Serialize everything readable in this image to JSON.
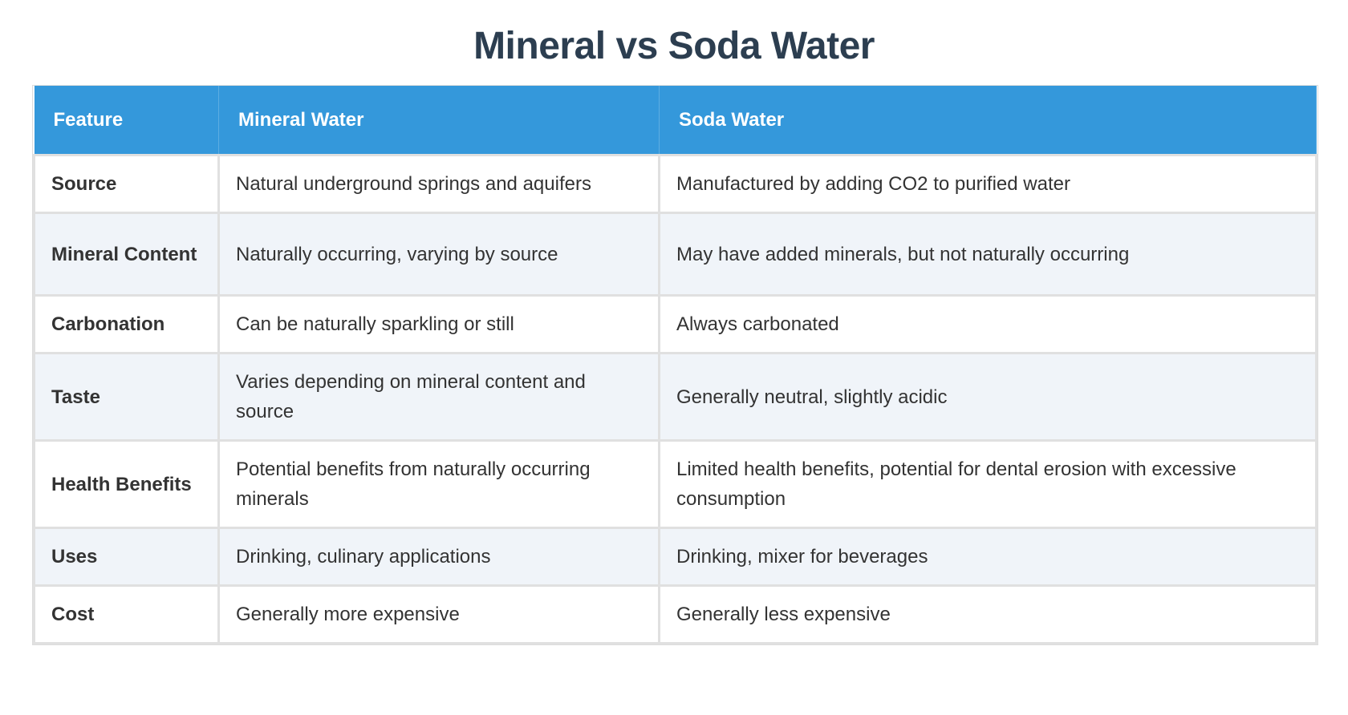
{
  "title": "Mineral vs Soda Water",
  "colors": {
    "header_bg": "#3498db",
    "title": "#2c3e50",
    "alt_row": "#f0f4f9"
  },
  "headers": [
    "Feature",
    "Mineral Water",
    "Soda Water"
  ],
  "rows": [
    [
      "Source",
      "Natural underground springs and aquifers",
      "Manufactured by adding CO2 to purified water"
    ],
    [
      "Mineral Content",
      "Naturally occurring, varying by source",
      "May have added minerals, but not naturally occurring"
    ],
    [
      "Carbonation",
      "Can be naturally sparkling or still",
      "Always carbonated"
    ],
    [
      "Taste",
      "Varies depending on mineral content and source",
      "Generally neutral, slightly acidic"
    ],
    [
      "Health Benefits",
      "Potential benefits from naturally occurring minerals",
      "Limited health benefits, potential for dental erosion with excessive consumption"
    ],
    [
      "Uses",
      "Drinking, culinary applications",
      "Drinking, mixer for beverages"
    ],
    [
      "Cost",
      "Generally more expensive",
      "Generally less expensive"
    ]
  ]
}
